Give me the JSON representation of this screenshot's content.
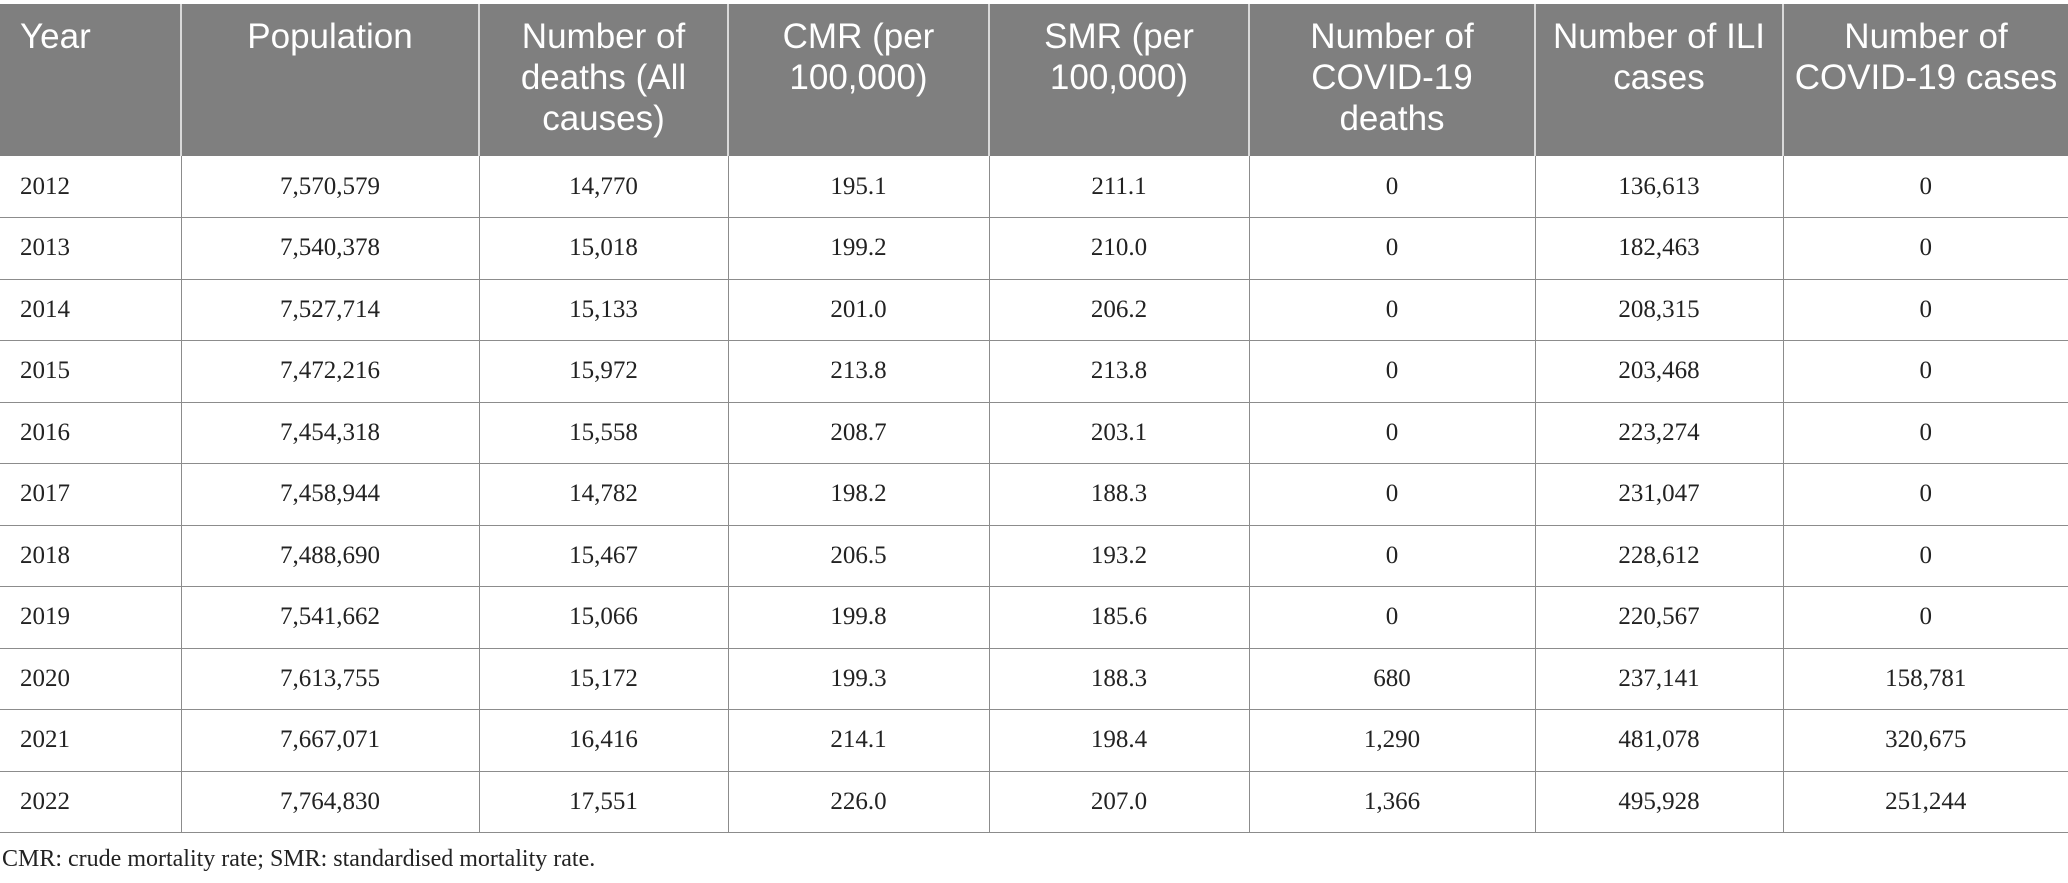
{
  "table": {
    "headers": [
      "Year",
      "Population",
      "Number of deaths (All causes)",
      "CMR (per 100,000)",
      "SMR (per 100,000)",
      "Number of COVID-19 deaths",
      "Number of ILI cases",
      "Number of COVID-19 cases"
    ],
    "rows": [
      [
        "2012",
        "7,570,579",
        "14,770",
        "195.1",
        "211.1",
        "0",
        "136,613",
        "0"
      ],
      [
        "2013",
        "7,540,378",
        "15,018",
        "199.2",
        "210.0",
        "0",
        "182,463",
        "0"
      ],
      [
        "2014",
        "7,527,714",
        "15,133",
        "201.0",
        "206.2",
        "0",
        "208,315",
        "0"
      ],
      [
        "2015",
        "7,472,216",
        "15,972",
        "213.8",
        "213.8",
        "0",
        "203,468",
        "0"
      ],
      [
        "2016",
        "7,454,318",
        "15,558",
        "208.7",
        "203.1",
        "0",
        "223,274",
        "0"
      ],
      [
        "2017",
        "7,458,944",
        "14,782",
        "198.2",
        "188.3",
        "0",
        "231,047",
        "0"
      ],
      [
        "2018",
        "7,488,690",
        "15,467",
        "206.5",
        "193.2",
        "0",
        "228,612",
        "0"
      ],
      [
        "2019",
        "7,541,662",
        "15,066",
        "199.8",
        "185.6",
        "0",
        "220,567",
        "0"
      ],
      [
        "2020",
        "7,613,755",
        "15,172",
        "199.3",
        "188.3",
        "680",
        "237,141",
        "158,781"
      ],
      [
        "2021",
        "7,667,071",
        "16,416",
        "214.1",
        "198.4",
        "1,290",
        "481,078",
        "320,675"
      ],
      [
        "2022",
        "7,764,830",
        "17,551",
        "226.0",
        "207.0",
        "1,366",
        "495,928",
        "251,244"
      ]
    ]
  },
  "footnote": "CMR: crude mortality rate; SMR: standardised mortality rate.",
  "colors": {
    "header_background": "#7f7f7f",
    "header_text": "#ffffff",
    "grid_line": "#8c8c8c"
  }
}
